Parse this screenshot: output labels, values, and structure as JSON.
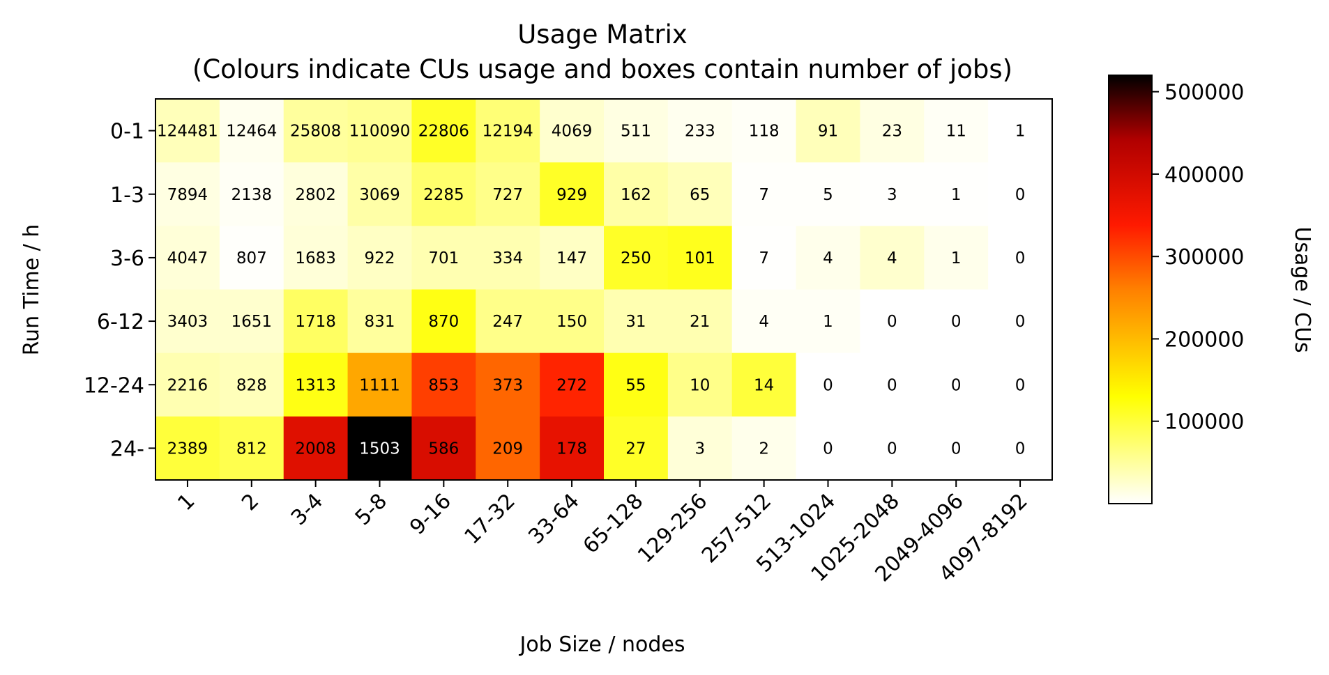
{
  "chart_data": {
    "type": "heatmap",
    "title": "Usage Matrix",
    "subtitle": "(Colours indicate CUs usage and boxes contain number of jobs)",
    "xlabel": "Job Size / nodes",
    "ylabel": "Run Time / h",
    "colorbar_label": "Usage / CUs",
    "colormap": "hot_r",
    "colorbar_range": [
      0,
      520000
    ],
    "colorbar_ticks": [
      100000,
      200000,
      300000,
      400000,
      500000
    ],
    "colorbar_tick_labels": [
      "100000",
      "200000",
      "300000",
      "400000",
      "500000"
    ],
    "x_categories": [
      "1",
      "2",
      "3-4",
      "5-8",
      "9-16",
      "17-32",
      "33-64",
      "65-128",
      "129-256",
      "257-512",
      "513-1024",
      "1025-2048",
      "2049-4096",
      "4097-8192"
    ],
    "y_categories": [
      "0-1",
      "1-3",
      "3-6",
      "6-12",
      "12-24",
      "24-"
    ],
    "job_counts": [
      [
        "124481",
        "12464",
        "25808",
        "110090",
        "22806",
        "12194",
        "4069",
        "511",
        "233",
        "118",
        "91",
        "23",
        "11",
        "1"
      ],
      [
        "7894",
        "2138",
        "2802",
        "3069",
        "2285",
        "727",
        "929",
        "162",
        "65",
        "7",
        "5",
        "3",
        "1",
        "0"
      ],
      [
        "4047",
        "807",
        "1683",
        "922",
        "701",
        "334",
        "147",
        "250",
        "101",
        "7",
        "4",
        "4",
        "1",
        "0"
      ],
      [
        "3403",
        "1651",
        "1718",
        "831",
        "870",
        "247",
        "150",
        "31",
        "21",
        "4",
        "1",
        "0",
        "0",
        "0"
      ],
      [
        "2216",
        "828",
        "1313",
        "1111",
        "853",
        "373",
        "272",
        "55",
        "10",
        "14",
        "0",
        "0",
        "0",
        "0"
      ],
      [
        "2389",
        "812",
        "2008",
        "1503",
        "586",
        "209",
        "178",
        "27",
        "3",
        "2",
        "0",
        "0",
        "0",
        "0"
      ]
    ],
    "usage_cus": [
      [
        35000,
        8000,
        50000,
        55000,
        110000,
        70000,
        25000,
        15000,
        8000,
        4000,
        35000,
        15000,
        5000,
        0
      ],
      [
        15000,
        5000,
        18000,
        45000,
        75000,
        60000,
        110000,
        45000,
        35000,
        2000,
        2000,
        1000,
        1000,
        0
      ],
      [
        20000,
        2000,
        20000,
        30000,
        40000,
        40000,
        30000,
        110000,
        115000,
        1000,
        10000,
        25000,
        10000,
        0
      ],
      [
        25000,
        25000,
        80000,
        50000,
        120000,
        60000,
        60000,
        40000,
        40000,
        5000,
        5000,
        0,
        0,
        0
      ],
      [
        40000,
        35000,
        120000,
        220000,
        310000,
        280000,
        330000,
        120000,
        60000,
        100000,
        0,
        0,
        0,
        0
      ],
      [
        100000,
        90000,
        380000,
        520000,
        390000,
        280000,
        370000,
        110000,
        20000,
        10000,
        0,
        0,
        0,
        0
      ]
    ]
  }
}
